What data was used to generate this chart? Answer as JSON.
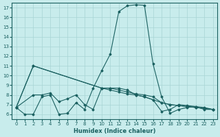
{
  "xlabel": "Humidex (Indice chaleur)",
  "xlim": [
    -0.5,
    23.5
  ],
  "ylim": [
    5.5,
    17.5
  ],
  "yticks": [
    6,
    7,
    8,
    9,
    10,
    11,
    12,
    13,
    14,
    15,
    16,
    17
  ],
  "xticks": [
    0,
    1,
    2,
    3,
    4,
    5,
    6,
    7,
    8,
    9,
    10,
    11,
    12,
    13,
    14,
    15,
    16,
    17,
    18,
    19,
    20,
    21,
    22,
    23
  ],
  "bg_color": "#c8ecec",
  "grid_color": "#a8d4d4",
  "line_color": "#1a6060",
  "line1_x": [
    0,
    1,
    2,
    3,
    4,
    5,
    6,
    7,
    8,
    9,
    10,
    11,
    12,
    13,
    14,
    15,
    16,
    17,
    18,
    19,
    20,
    21,
    22,
    23
  ],
  "line1_y": [
    6.7,
    6.0,
    6.0,
    7.8,
    8.0,
    6.0,
    6.1,
    7.2,
    6.5,
    8.7,
    10.5,
    12.2,
    16.6,
    17.2,
    17.3,
    17.25,
    11.2,
    7.8,
    6.1,
    6.5,
    6.7,
    6.8,
    6.5,
    6.5
  ],
  "line2_x": [
    0,
    2,
    10,
    11,
    12,
    13,
    14,
    15,
    16,
    17,
    18,
    19,
    20,
    21,
    22,
    23
  ],
  "line2_y": [
    6.7,
    11.0,
    8.7,
    8.7,
    8.5,
    8.3,
    8.1,
    8.0,
    7.8,
    7.2,
    7.0,
    6.9,
    6.8,
    6.7,
    6.6,
    6.5
  ],
  "line3_x": [
    0,
    2,
    10,
    11,
    12,
    13,
    14,
    15,
    16,
    17,
    18,
    19,
    20,
    21,
    22,
    23
  ],
  "line3_y": [
    6.7,
    11.0,
    8.7,
    8.5,
    8.3,
    8.1,
    8.0,
    7.8,
    7.5,
    7.2,
    7.0,
    6.9,
    6.8,
    6.7,
    6.6,
    6.5
  ],
  "line4_x": [
    0,
    2,
    3,
    4,
    5,
    6,
    7,
    8,
    9,
    10,
    11,
    12,
    13,
    14,
    15,
    16,
    17,
    18,
    19,
    20,
    21,
    22,
    23
  ],
  "line4_y": [
    6.7,
    8.0,
    8.0,
    8.2,
    7.3,
    7.6,
    8.0,
    7.0,
    6.5,
    8.7,
    8.7,
    8.7,
    8.5,
    8.0,
    7.8,
    7.5,
    6.3,
    6.5,
    7.0,
    6.9,
    6.8,
    6.7,
    6.5
  ]
}
